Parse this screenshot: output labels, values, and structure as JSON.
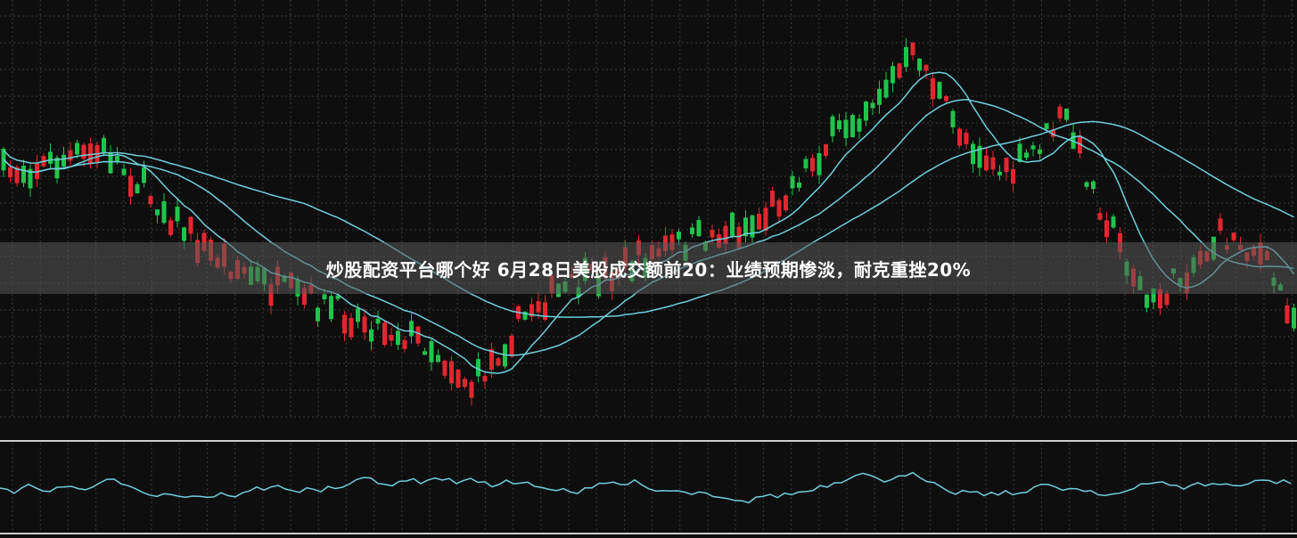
{
  "banner": {
    "title": "炒股配资平台哪个好 6月28日美股成交额前20：业绩预期惨淡，耐克重挫20%"
  }
}
